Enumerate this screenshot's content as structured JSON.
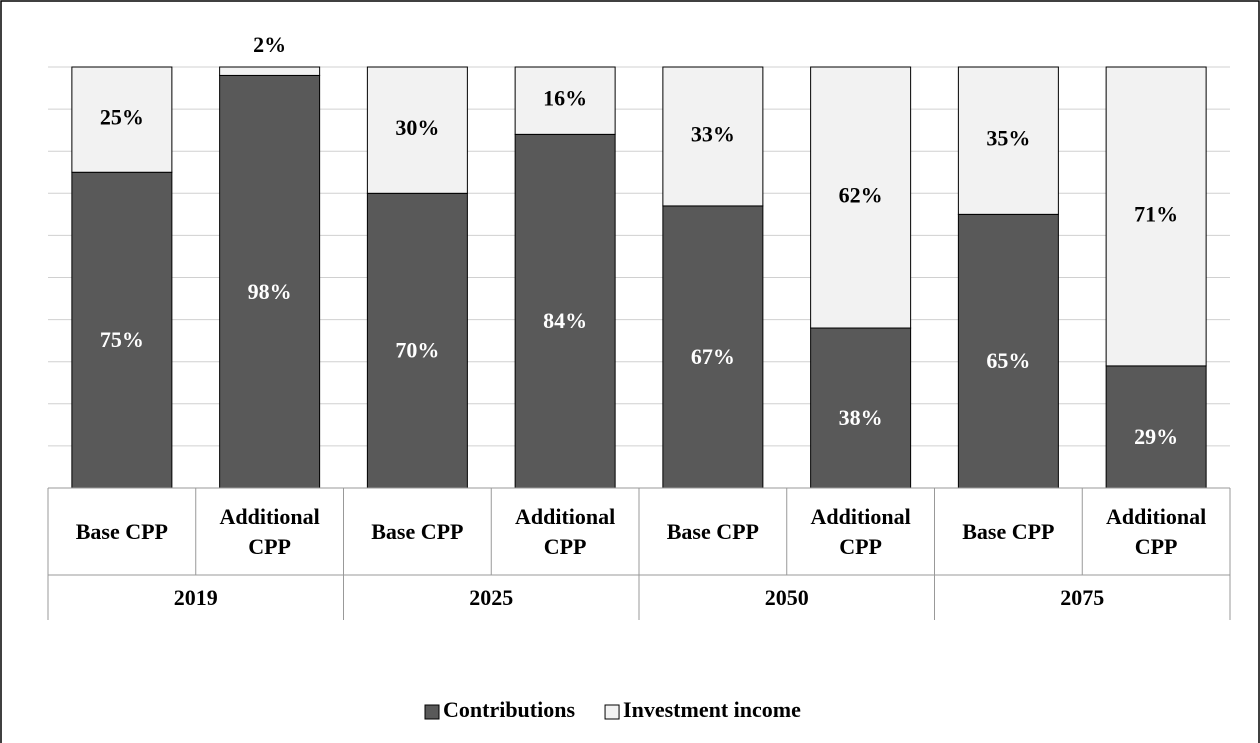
{
  "chart_data": {
    "type": "bar",
    "stacked": true,
    "categories": [
      "Base CPP",
      "Additional CPP",
      "Base CPP",
      "Additional CPP",
      "Base CPP",
      "Additional CPP",
      "Base CPP",
      "Additional CPP"
    ],
    "groups": [
      "2019",
      "2025",
      "2050",
      "2075"
    ],
    "series": [
      {
        "name": "Contributions",
        "color": "#595959",
        "label_color": "#ffffff",
        "values": [
          75,
          98,
          70,
          84,
          67,
          38,
          65,
          29
        ],
        "value_labels": [
          "75%",
          "98%",
          "70%",
          "84%",
          "67%",
          "38%",
          "65%",
          "29%"
        ]
      },
      {
        "name": "Investment income",
        "color": "#f2f2f2",
        "label_color": "#000000",
        "values": [
          25,
          2,
          30,
          16,
          33,
          62,
          35,
          71
        ],
        "value_labels": [
          "25%",
          "2%",
          "30%",
          "16%",
          "33%",
          "62%",
          "35%",
          "71%"
        ]
      }
    ],
    "ylim": [
      0,
      100
    ],
    "yticks": [
      0,
      10,
      20,
      30,
      40,
      50,
      60,
      70,
      80,
      90,
      100
    ],
    "grid": true,
    "legend": "bottom"
  }
}
